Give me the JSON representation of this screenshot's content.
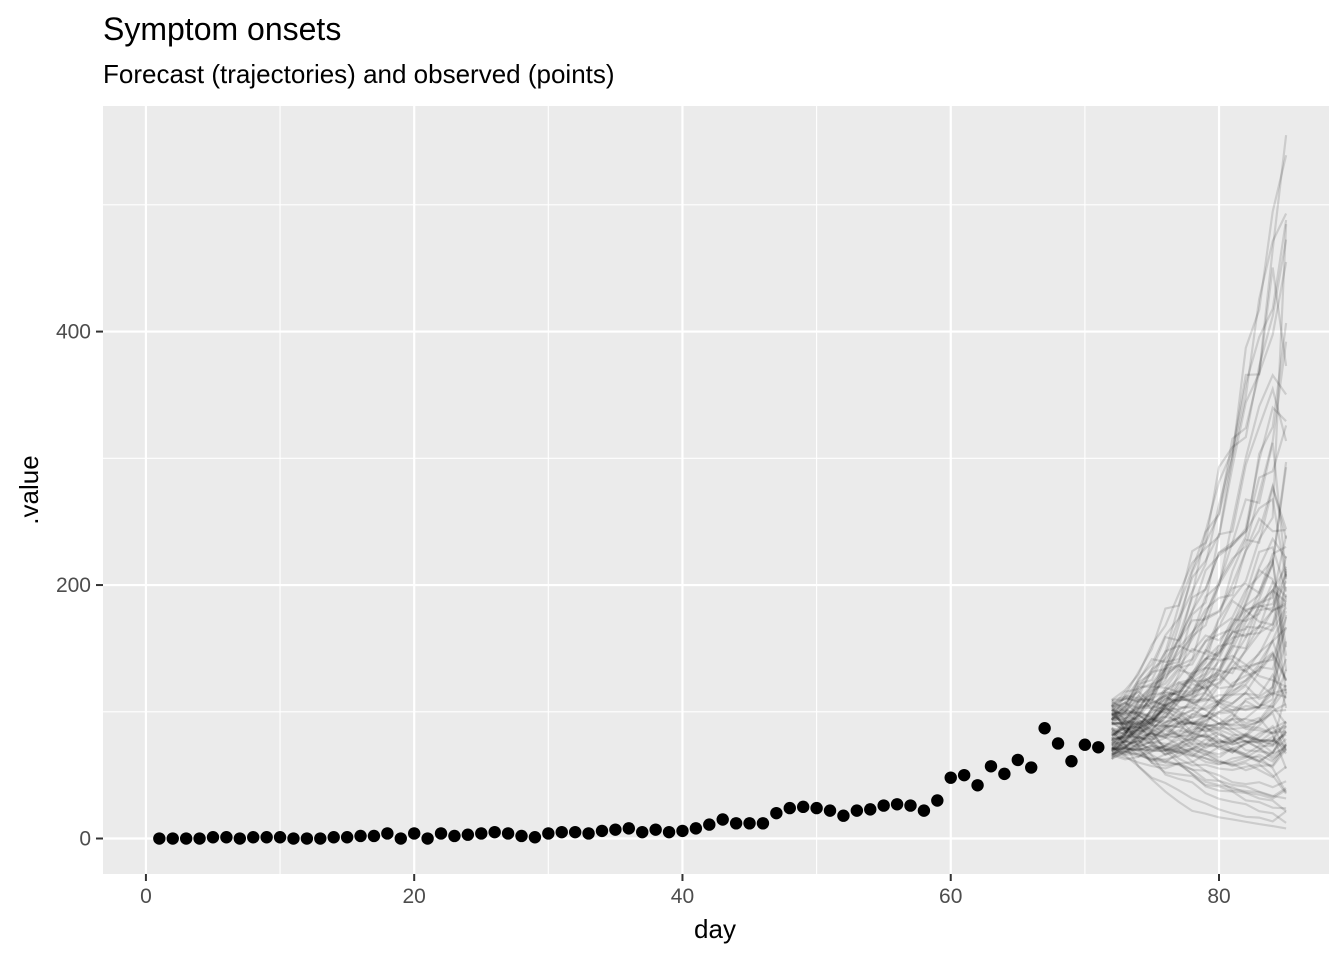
{
  "chart_data": {
    "type": "line",
    "title": "Symptom onsets",
    "subtitle": "Forecast (trajectories) and observed (points)",
    "xlabel": "day",
    "ylabel": ".value",
    "xlim": [
      -3.2,
      88.2
    ],
    "ylim": [
      -28,
      578
    ],
    "x_ticks": [
      0,
      20,
      40,
      60,
      80
    ],
    "y_ticks": [
      0,
      200,
      400
    ],
    "x_tick_labels": [
      "0",
      "20",
      "40",
      "60",
      "80"
    ],
    "y_tick_labels": [
      "0",
      "200",
      "400"
    ],
    "grid": true,
    "legend": "none",
    "colors": {
      "panel": "#ebebeb",
      "grid": "#ffffff",
      "points": "#000000",
      "trajectories": "#000000",
      "tick_text": "#4d4d4d"
    },
    "observed": {
      "x": [
        1,
        2,
        3,
        4,
        5,
        6,
        7,
        8,
        9,
        10,
        11,
        12,
        13,
        14,
        15,
        16,
        17,
        18,
        19,
        20,
        21,
        22,
        23,
        24,
        25,
        26,
        27,
        28,
        29,
        30,
        31,
        32,
        33,
        34,
        35,
        36,
        37,
        38,
        39,
        40,
        41,
        42,
        43,
        44,
        45,
        46,
        47,
        48,
        49,
        50,
        51,
        52,
        53,
        54,
        55,
        56,
        57,
        58,
        59,
        60,
        61,
        62,
        63,
        64,
        65,
        66,
        67,
        68,
        69,
        70,
        71
      ],
      "y": [
        0,
        0,
        0,
        0,
        1,
        1,
        0,
        1,
        1,
        1,
        0,
        0,
        0,
        1,
        1,
        2,
        2,
        4,
        0,
        4,
        0,
        4,
        2,
        3,
        4,
        5,
        4,
        2,
        1,
        4,
        5,
        5,
        4,
        6,
        7,
        8,
        5,
        7,
        5,
        6,
        8,
        11,
        15,
        12,
        12,
        12,
        20,
        24,
        25,
        24,
        22,
        18,
        22,
        23,
        26,
        27,
        26,
        22,
        30,
        48,
        50,
        42,
        57,
        51,
        62,
        56,
        87,
        75,
        61,
        74,
        72
      ]
    },
    "trajectories": {
      "start_day": 72,
      "end_day": 85,
      "count": 100,
      "start_range": [
        60,
        110
      ],
      "end_range": [
        8,
        555
      ],
      "end_median": 140
    }
  }
}
